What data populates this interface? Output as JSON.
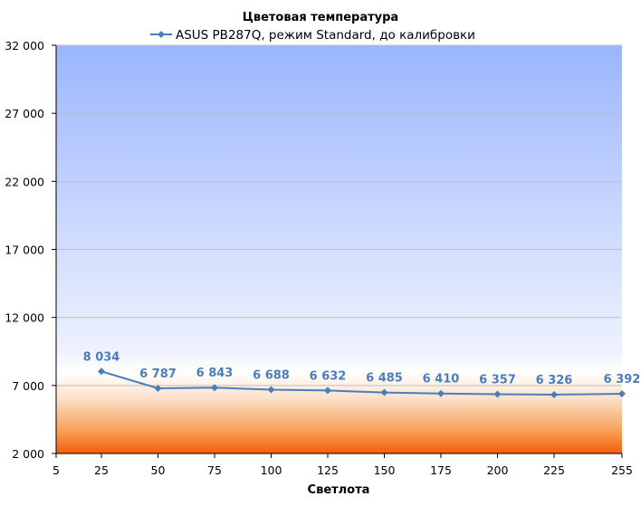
{
  "chart_data": {
    "type": "line",
    "title": "Цветовая температура",
    "xlabel": "Светлота",
    "ylabel": "",
    "x": [
      25,
      50,
      75,
      100,
      125,
      150,
      175,
      200,
      225,
      255
    ],
    "x_ticks": [
      5,
      25,
      50,
      75,
      100,
      125,
      150,
      175,
      200,
      225,
      255
    ],
    "x_tick_labels": [
      "5",
      "25",
      "50",
      "75",
      "100",
      "125",
      "150",
      "175",
      "200",
      "225",
      "255"
    ],
    "ylim": [
      2000,
      32000
    ],
    "y_ticks": [
      2000,
      7000,
      12000,
      17000,
      22000,
      27000,
      32000
    ],
    "y_tick_labels": [
      "2 000",
      "7 000",
      "12 000",
      "17 000",
      "22 000",
      "27 000",
      "32 000"
    ],
    "grid": true,
    "legend_position": "top",
    "series": [
      {
        "name": "ASUS PB287Q, режим Standard, до калибровки",
        "color": "#4a7ebb",
        "values": [
          8034,
          6787,
          6843,
          6688,
          6632,
          6485,
          6410,
          6357,
          6326,
          6392
        ],
        "labels": [
          "8 034",
          "6 787",
          "6 843",
          "6 688",
          "6 632",
          "6 485",
          "6 410",
          "6 357",
          "6 326",
          "6 392"
        ]
      }
    ]
  }
}
